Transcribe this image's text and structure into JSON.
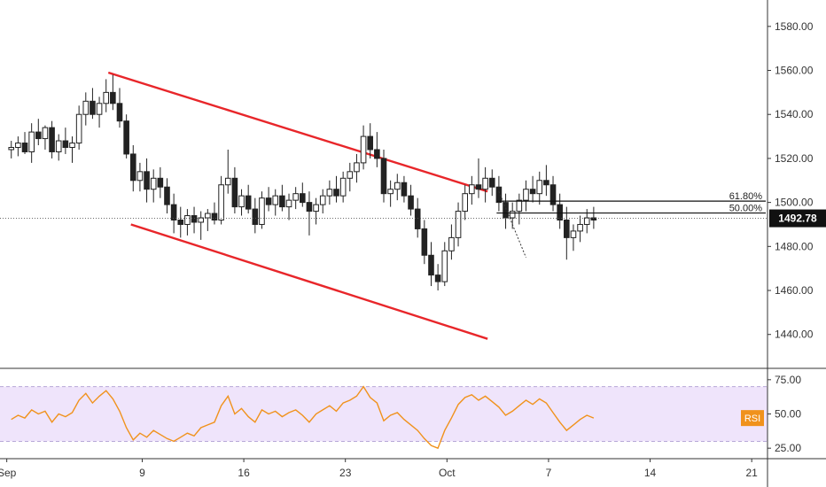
{
  "chart_data": {
    "type": "candlestick",
    "price_panel": {
      "ylim": [
        1425,
        1592
      ],
      "y_ticks": [
        "1440.00",
        "1460.00",
        "1480.00",
        "1500.00",
        "1520.00",
        "1540.00",
        "1560.00",
        "1580.00"
      ],
      "last_price": "1492.78",
      "fib_levels": [
        {
          "label": "61.80%",
          "value": 1500.6
        },
        {
          "label": "50.00%",
          "value": 1495.2
        }
      ],
      "channel": {
        "upper": {
          "from": {
            "x": 4.5,
            "y": 1559
          },
          "to": {
            "x": 21.3,
            "y": 1505
          }
        },
        "lower": {
          "from": {
            "x": 5.5,
            "y": 1490
          },
          "to": {
            "x": 21.3,
            "y": 1438
          }
        },
        "color": "#e8262a"
      },
      "candles": [
        [
          0.2,
          1524,
          1528,
          1520,
          1525
        ],
        [
          0.5,
          1525,
          1530,
          1521,
          1527
        ],
        [
          0.8,
          1527,
          1532,
          1522,
          1523
        ],
        [
          1.1,
          1523,
          1536,
          1518,
          1532
        ],
        [
          1.4,
          1532,
          1538,
          1526,
          1529
        ],
        [
          1.7,
          1529,
          1535,
          1524,
          1534
        ],
        [
          2.0,
          1534,
          1537,
          1520,
          1523
        ],
        [
          2.3,
          1523,
          1531,
          1519,
          1528
        ],
        [
          2.6,
          1528,
          1534,
          1522,
          1525
        ],
        [
          2.9,
          1525,
          1530,
          1518,
          1527
        ],
        [
          3.2,
          1527,
          1544,
          1524,
          1540
        ],
        [
          3.5,
          1540,
          1550,
          1535,
          1546
        ],
        [
          3.8,
          1546,
          1552,
          1538,
          1540
        ],
        [
          4.1,
          1540,
          1548,
          1534,
          1545
        ],
        [
          4.4,
          1545,
          1556,
          1541,
          1550
        ],
        [
          4.7,
          1550,
          1558,
          1542,
          1545
        ],
        [
          5.0,
          1545,
          1552,
          1534,
          1537
        ],
        [
          5.3,
          1537,
          1540,
          1520,
          1522
        ],
        [
          5.6,
          1522,
          1526,
          1505,
          1510
        ],
        [
          5.9,
          1510,
          1518,
          1505,
          1514
        ],
        [
          6.2,
          1514,
          1520,
          1500,
          1506
        ],
        [
          6.5,
          1506,
          1515,
          1500,
          1511
        ],
        [
          6.8,
          1511,
          1516,
          1502,
          1507
        ],
        [
          7.1,
          1507,
          1511,
          1495,
          1499
        ],
        [
          7.4,
          1499,
          1504,
          1486,
          1492
        ],
        [
          7.7,
          1492,
          1498,
          1484,
          1490
        ],
        [
          8.0,
          1490,
          1497,
          1485,
          1494
        ],
        [
          8.3,
          1494,
          1498,
          1486,
          1491
        ],
        [
          8.6,
          1491,
          1496,
          1483,
          1493
        ],
        [
          8.9,
          1493,
          1497,
          1487,
          1495
        ],
        [
          9.2,
          1495,
          1500,
          1490,
          1492
        ],
        [
          9.5,
          1492,
          1512,
          1490,
          1508
        ],
        [
          9.8,
          1508,
          1524,
          1504,
          1511
        ],
        [
          10.1,
          1511,
          1516,
          1495,
          1498
        ],
        [
          10.4,
          1498,
          1506,
          1494,
          1503
        ],
        [
          10.7,
          1503,
          1508,
          1495,
          1497
        ],
        [
          11.0,
          1497,
          1502,
          1486,
          1490
        ],
        [
          11.3,
          1490,
          1505,
          1488,
          1502
        ],
        [
          11.6,
          1502,
          1507,
          1496,
          1499
        ],
        [
          11.9,
          1499,
          1506,
          1494,
          1503
        ],
        [
          12.2,
          1503,
          1508,
          1496,
          1498
        ],
        [
          12.5,
          1498,
          1504,
          1492,
          1501
        ],
        [
          12.8,
          1501,
          1507,
          1497,
          1504
        ],
        [
          13.1,
          1504,
          1509,
          1498,
          1500
        ],
        [
          13.4,
          1500,
          1505,
          1485,
          1496
        ],
        [
          13.7,
          1496,
          1502,
          1490,
          1499
        ],
        [
          14.0,
          1499,
          1506,
          1495,
          1503
        ],
        [
          14.3,
          1503,
          1510,
          1499,
          1506
        ],
        [
          14.6,
          1506,
          1512,
          1500,
          1503
        ],
        [
          14.9,
          1503,
          1514,
          1500,
          1511
        ],
        [
          15.2,
          1511,
          1518,
          1505,
          1514
        ],
        [
          15.5,
          1514,
          1522,
          1509,
          1518
        ],
        [
          15.8,
          1518,
          1535,
          1515,
          1530
        ],
        [
          16.1,
          1530,
          1536,
          1520,
          1524
        ],
        [
          16.4,
          1524,
          1532,
          1516,
          1520
        ],
        [
          16.7,
          1520,
          1524,
          1500,
          1504
        ],
        [
          17.0,
          1504,
          1510,
          1498,
          1506
        ],
        [
          17.3,
          1506,
          1513,
          1501,
          1509
        ],
        [
          17.6,
          1509,
          1512,
          1500,
          1503
        ],
        [
          17.9,
          1503,
          1508,
          1494,
          1497
        ],
        [
          18.2,
          1497,
          1502,
          1484,
          1488
        ],
        [
          18.5,
          1488,
          1492,
          1472,
          1476
        ],
        [
          18.8,
          1476,
          1482,
          1462,
          1467
        ],
        [
          19.1,
          1467,
          1472,
          1460,
          1464
        ],
        [
          19.4,
          1464,
          1482,
          1462,
          1478
        ],
        [
          19.7,
          1478,
          1490,
          1474,
          1484
        ],
        [
          20.0,
          1484,
          1500,
          1480,
          1496
        ],
        [
          20.3,
          1496,
          1508,
          1492,
          1504
        ],
        [
          20.6,
          1504,
          1512,
          1499,
          1508
        ],
        [
          20.9,
          1508,
          1520,
          1502,
          1506
        ],
        [
          21.2,
          1506,
          1516,
          1500,
          1511
        ],
        [
          21.5,
          1511,
          1515,
          1503,
          1507
        ],
        [
          21.8,
          1507,
          1512,
          1496,
          1500
        ],
        [
          22.1,
          1500,
          1504,
          1488,
          1493
        ],
        [
          22.4,
          1493,
          1500,
          1488,
          1496
        ],
        [
          22.7,
          1496,
          1504,
          1490,
          1501
        ],
        [
          23.0,
          1501,
          1510,
          1496,
          1506
        ],
        [
          23.3,
          1506,
          1512,
          1500,
          1504
        ],
        [
          23.6,
          1504,
          1514,
          1499,
          1510
        ],
        [
          23.9,
          1510,
          1517,
          1503,
          1508
        ],
        [
          24.2,
          1508,
          1512,
          1496,
          1499
        ],
        [
          24.5,
          1499,
          1504,
          1488,
          1492
        ],
        [
          24.8,
          1492,
          1498,
          1474,
          1484
        ],
        [
          25.1,
          1484,
          1490,
          1478,
          1487
        ],
        [
          25.4,
          1487,
          1494,
          1482,
          1490
        ],
        [
          25.7,
          1490,
          1497,
          1486,
          1493
        ],
        [
          26.0,
          1493,
          1498,
          1488,
          1492
        ]
      ],
      "fib_dashed_line": [
        [
          21.8,
          1505
        ],
        [
          23.0,
          1475
        ]
      ]
    },
    "rsi_panel": {
      "label": "RSI",
      "ylim": [
        18,
        82
      ],
      "y_ticks": [
        "25.00",
        "50.00",
        "75.00"
      ],
      "band": [
        30,
        70
      ],
      "band_color": "#efe4fb",
      "line_color": "#f0921c",
      "values": [
        [
          0.2,
          46
        ],
        [
          0.5,
          49
        ],
        [
          0.8,
          47
        ],
        [
          1.1,
          53
        ],
        [
          1.4,
          50
        ],
        [
          1.7,
          52
        ],
        [
          2.0,
          44
        ],
        [
          2.3,
          50
        ],
        [
          2.6,
          48
        ],
        [
          2.9,
          51
        ],
        [
          3.2,
          60
        ],
        [
          3.5,
          65
        ],
        [
          3.8,
          58
        ],
        [
          4.1,
          63
        ],
        [
          4.4,
          67
        ],
        [
          4.7,
          61
        ],
        [
          5.0,
          52
        ],
        [
          5.3,
          40
        ],
        [
          5.6,
          31
        ],
        [
          5.9,
          36
        ],
        [
          6.2,
          33
        ],
        [
          6.5,
          38
        ],
        [
          6.8,
          35
        ],
        [
          7.1,
          32
        ],
        [
          7.4,
          30
        ],
        [
          7.7,
          33
        ],
        [
          8.0,
          36
        ],
        [
          8.3,
          34
        ],
        [
          8.6,
          40
        ],
        [
          8.9,
          42
        ],
        [
          9.2,
          44
        ],
        [
          9.5,
          56
        ],
        [
          9.8,
          63
        ],
        [
          10.1,
          50
        ],
        [
          10.4,
          54
        ],
        [
          10.7,
          48
        ],
        [
          11.0,
          44
        ],
        [
          11.3,
          53
        ],
        [
          11.6,
          50
        ],
        [
          11.9,
          52
        ],
        [
          12.2,
          48
        ],
        [
          12.5,
          51
        ],
        [
          12.8,
          53
        ],
        [
          13.1,
          49
        ],
        [
          13.4,
          44
        ],
        [
          13.7,
          50
        ],
        [
          14.0,
          53
        ],
        [
          14.3,
          56
        ],
        [
          14.6,
          52
        ],
        [
          14.9,
          58
        ],
        [
          15.2,
          60
        ],
        [
          15.5,
          63
        ],
        [
          15.8,
          70
        ],
        [
          16.1,
          62
        ],
        [
          16.4,
          58
        ],
        [
          16.7,
          45
        ],
        [
          17.0,
          49
        ],
        [
          17.3,
          51
        ],
        [
          17.6,
          46
        ],
        [
          17.9,
          42
        ],
        [
          18.2,
          38
        ],
        [
          18.5,
          32
        ],
        [
          18.8,
          27
        ],
        [
          19.1,
          25
        ],
        [
          19.4,
          38
        ],
        [
          19.7,
          47
        ],
        [
          20.0,
          57
        ],
        [
          20.3,
          62
        ],
        [
          20.6,
          64
        ],
        [
          20.9,
          60
        ],
        [
          21.2,
          63
        ],
        [
          21.5,
          59
        ],
        [
          21.8,
          55
        ],
        [
          22.1,
          49
        ],
        [
          22.4,
          52
        ],
        [
          22.7,
          56
        ],
        [
          23.0,
          60
        ],
        [
          23.3,
          57
        ],
        [
          23.6,
          61
        ],
        [
          23.9,
          58
        ],
        [
          24.2,
          51
        ],
        [
          24.5,
          44
        ],
        [
          24.8,
          38
        ],
        [
          25.1,
          42
        ],
        [
          25.4,
          46
        ],
        [
          25.7,
          49
        ],
        [
          26.0,
          47
        ]
      ]
    },
    "x_axis": {
      "ticks": [
        {
          "label": "Sep",
          "value": 0
        },
        {
          "label": "9",
          "value": 6
        },
        {
          "label": "16",
          "value": 10.5
        },
        {
          "label": "23",
          "value": 15
        },
        {
          "label": "Oct",
          "value": 19.5
        },
        {
          "label": "7",
          "value": 24
        },
        {
          "label": "14",
          "value": 28.5
        },
        {
          "label": "21",
          "value": 33
        }
      ]
    },
    "colors": {
      "candle": "#222222",
      "grid": "#d9d9d9",
      "price_tag_bg": "#111111",
      "rsi_tag_bg": "#f0921c"
    }
  }
}
